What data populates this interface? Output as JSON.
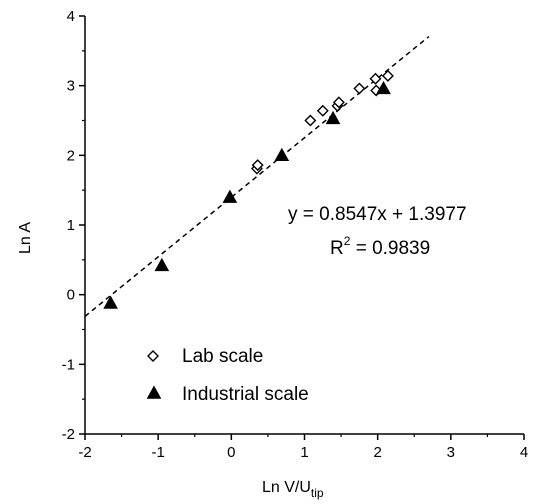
{
  "chart_data": {
    "type": "scatter",
    "xlabel": "Ln V/U",
    "xlabel_sub": "tip",
    "ylabel": "Ln A",
    "xlim": [
      -2,
      4
    ],
    "ylim": [
      -2,
      4
    ],
    "xticks": [
      -2,
      -1,
      0,
      1,
      2,
      3,
      4
    ],
    "yticks": [
      -2,
      -1,
      0,
      1,
      2,
      3,
      4
    ],
    "grid": false,
    "legend_position": "bottom-left",
    "series": [
      {
        "name": "Lab scale",
        "marker": "open-diamond",
        "points": [
          {
            "x": 0.35,
            "y": 1.81
          },
          {
            "x": 0.36,
            "y": 1.86
          },
          {
            "x": 1.08,
            "y": 2.5
          },
          {
            "x": 1.25,
            "y": 2.64
          },
          {
            "x": 1.45,
            "y": 2.71
          },
          {
            "x": 1.47,
            "y": 2.76
          },
          {
            "x": 1.75,
            "y": 2.96
          },
          {
            "x": 1.97,
            "y": 3.1
          },
          {
            "x": 1.98,
            "y": 2.93
          },
          {
            "x": 2.14,
            "y": 3.14
          }
        ]
      },
      {
        "name": "Industrial scale",
        "marker": "filled-triangle",
        "points": [
          {
            "x": -1.65,
            "y": -0.12
          },
          {
            "x": -0.95,
            "y": 0.42
          },
          {
            "x": -0.02,
            "y": 1.4
          },
          {
            "x": 0.69,
            "y": 2.0
          },
          {
            "x": 1.39,
            "y": 2.53
          },
          {
            "x": 2.08,
            "y": 2.96
          }
        ]
      }
    ],
    "trendline": {
      "slope": 0.8547,
      "intercept": 1.3977,
      "x_range": [
        -2.0,
        2.7
      ],
      "style": "dashed"
    },
    "annotations": [
      "y = 0.8547x + 1.3977",
      "R",
      "2",
      " = 0.9839"
    ]
  }
}
